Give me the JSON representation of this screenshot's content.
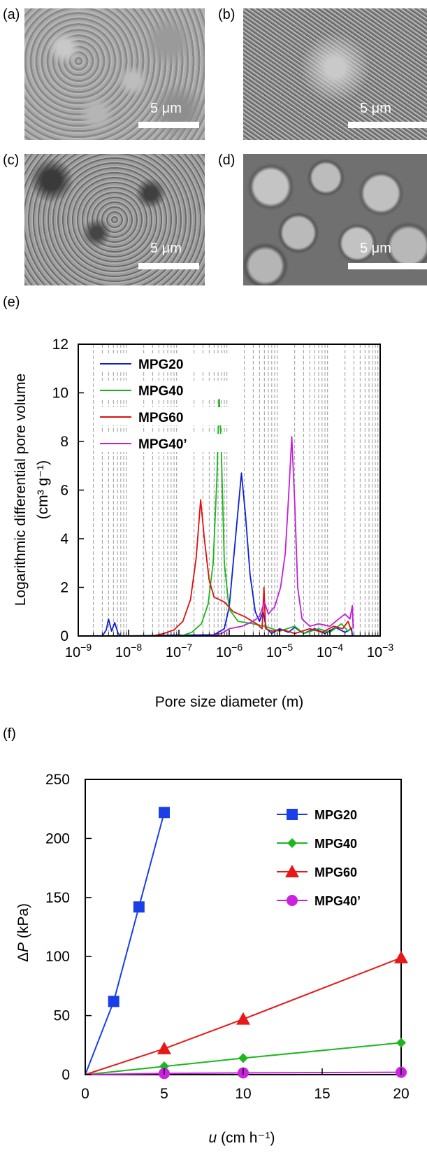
{
  "panels": {
    "a": {
      "label": "(a)",
      "scale": "5 μm"
    },
    "b": {
      "label": "(b)",
      "scale": "5 μm"
    },
    "c": {
      "label": "(c)",
      "scale": "5 μm"
    },
    "d": {
      "label": "(d)",
      "scale": "5 μm"
    },
    "e": {
      "label": "(e)"
    },
    "f": {
      "label": "(f)"
    }
  },
  "chart_data": [
    {
      "type": "line",
      "panel": "(e)",
      "title": "",
      "xlabel": "Pore size diameter (m)",
      "ylabel": "Logarithmic differential pore volume",
      "ylabel_unit": "(cm³ g⁻¹)",
      "x_scale": "log",
      "xlim": [
        1e-09,
        0.001
      ],
      "ylim": [
        0,
        12
      ],
      "yticks": [
        "0",
        "2",
        "4",
        "6",
        "8",
        "10",
        "12"
      ],
      "xticks": [
        {
          "base": "10",
          "exp": "−9"
        },
        {
          "base": "10",
          "exp": "−8"
        },
        {
          "base": "10",
          "exp": "−7"
        },
        {
          "base": "10",
          "exp": "−6"
        },
        {
          "base": "10",
          "exp": "−5"
        },
        {
          "base": "10",
          "exp": "−4"
        },
        {
          "base": "10",
          "exp": "−3"
        }
      ],
      "grid": "vertical dashed minor",
      "legend": "top-left",
      "series": [
        {
          "name": "MPG20",
          "color": "#0b1fd6",
          "points": [
            [
              3e-09,
              0
            ],
            [
              3.6e-09,
              0.25
            ],
            [
              4e-09,
              0.7
            ],
            [
              4.6e-09,
              0.2
            ],
            [
              5.3e-09,
              0.55
            ],
            [
              6.2e-09,
              0.1
            ],
            [
              7e-09,
              0
            ],
            [
              5e-07,
              0.05
            ],
            [
              8e-07,
              0.3
            ],
            [
              1e-06,
              1.2
            ],
            [
              1.2e-06,
              3.0
            ],
            [
              1.5e-06,
              5.2
            ],
            [
              1.75e-06,
              6.7
            ],
            [
              2.1e-06,
              5.0
            ],
            [
              2.6e-06,
              2.5
            ],
            [
              3.3e-06,
              1.0
            ],
            [
              4e-06,
              0.6
            ],
            [
              4.7e-06,
              1.0
            ],
            [
              5.5e-06,
              0.3
            ],
            [
              7e-06,
              0.1
            ],
            [
              1e-05,
              0.3
            ],
            [
              1.5e-05,
              0.15
            ],
            [
              2e-05,
              0.35
            ],
            [
              3e-05,
              0.1
            ],
            [
              5e-05,
              0.3
            ],
            [
              8e-05,
              0.1
            ],
            [
              0.00013,
              0.35
            ],
            [
              0.0002,
              0.15
            ],
            [
              0.00027,
              0.3
            ],
            [
              0.00028,
              0
            ]
          ]
        },
        {
          "name": "MPG40",
          "color": "#18b818",
          "points": [
            [
              3e-09,
              0
            ],
            [
              5e-08,
              0
            ],
            [
              1.1e-07,
              0
            ],
            [
              1.8e-07,
              0.15
            ],
            [
              2.8e-07,
              0.5
            ],
            [
              3.8e-07,
              1.3
            ],
            [
              4.8e-07,
              3.0
            ],
            [
              5.7e-07,
              6.5
            ],
            [
              6.3e-07,
              9.9
            ],
            [
              7e-07,
              7.5
            ],
            [
              8e-07,
              3.0
            ],
            [
              1e-06,
              1.1
            ],
            [
              1.5e-06,
              0.6
            ],
            [
              3e-06,
              0.5
            ],
            [
              5e-06,
              0.4
            ],
            [
              1e-05,
              0.2
            ],
            [
              2e-05,
              0.4
            ],
            [
              3e-05,
              0.1
            ],
            [
              6e-05,
              0.3
            ],
            [
              0.0001,
              0.15
            ],
            [
              0.00017,
              0.5
            ],
            [
              0.00023,
              0.2
            ],
            [
              0.00027,
              0.35
            ]
          ]
        },
        {
          "name": "MPG60",
          "color": "#e01010",
          "points": [
            [
              3e-08,
              0
            ],
            [
              5e-08,
              0.1
            ],
            [
              8e-08,
              0.25
            ],
            [
              1.2e-07,
              0.6
            ],
            [
              1.7e-07,
              1.5
            ],
            [
              2.2e-07,
              3.2
            ],
            [
              2.7e-07,
              5.6
            ],
            [
              3.2e-07,
              4.0
            ],
            [
              4e-07,
              2.3
            ],
            [
              5e-07,
              1.6
            ],
            [
              8e-07,
              1.4
            ],
            [
              1.2e-06,
              1.0
            ],
            [
              2e-06,
              0.8
            ],
            [
              3.5e-06,
              0.5
            ],
            [
              4.5e-06,
              0.3
            ],
            [
              4.9e-06,
              2.0
            ],
            [
              5.3e-06,
              0.3
            ],
            [
              7e-06,
              0.2
            ],
            [
              1.2e-05,
              0.25
            ],
            [
              2e-05,
              0.1
            ],
            [
              4e-05,
              0.3
            ],
            [
              7e-05,
              0.15
            ],
            [
              0.00012,
              0.4
            ],
            [
              0.00018,
              0.3
            ],
            [
              0.00023,
              0.6
            ],
            [
              0.00027,
              0.2
            ]
          ]
        },
        {
          "name": "MPG40’",
          "color": "#c21fd9",
          "points": [
            [
              4e-07,
              0
            ],
            [
              7e-07,
              0.1
            ],
            [
              1e-06,
              0.3
            ],
            [
              1.8e-06,
              0.4
            ],
            [
              3e-06,
              0.6
            ],
            [
              4e-06,
              0.8
            ],
            [
              5e-06,
              1.4
            ],
            [
              6e-06,
              0.9
            ],
            [
              8e-06,
              1.2
            ],
            [
              1.05e-05,
              2.0
            ],
            [
              1.3e-05,
              3.4
            ],
            [
              1.5e-05,
              5.6
            ],
            [
              1.75e-05,
              8.2
            ],
            [
              2e-05,
              5.5
            ],
            [
              2.3e-05,
              2.0
            ],
            [
              2.8e-05,
              0.7
            ],
            [
              4e-05,
              0.4
            ],
            [
              6e-05,
              0.5
            ],
            [
              0.0001,
              0.4
            ],
            [
              0.00015,
              0.7
            ],
            [
              0.0002,
              0.9
            ],
            [
              0.00025,
              0.7
            ],
            [
              0.00028,
              1.25
            ],
            [
              0.00029,
              0.3
            ]
          ]
        }
      ]
    },
    {
      "type": "line",
      "panel": "(f)",
      "title": "",
      "xlabel_italic": "u",
      "xlabel_rest": " (cm h⁻¹)",
      "ylabel_prefix": "Δ",
      "ylabel_italic": "P",
      "ylabel_rest": " (kPa)",
      "xlim": [
        0,
        20
      ],
      "ylim": [
        0,
        250
      ],
      "xticks": [
        "0",
        "5",
        "10",
        "15",
        "20"
      ],
      "yticks": [
        "0",
        "50",
        "100",
        "150",
        "200",
        "250"
      ],
      "grid": false,
      "legend": "top-right",
      "series": [
        {
          "name": "MPG20",
          "color": "#1a3fe8",
          "marker": "square",
          "x": [
            0,
            1.8,
            3.4,
            5.0
          ],
          "y": [
            0,
            62,
            142,
            222
          ]
        },
        {
          "name": "MPG40",
          "color": "#1db71d",
          "marker": "diamond",
          "x": [
            0,
            5,
            10,
            20
          ],
          "y": [
            0,
            7,
            14,
            27
          ]
        },
        {
          "name": "MPG60",
          "color": "#e81818",
          "marker": "triangle",
          "x": [
            0,
            5,
            10,
            20
          ],
          "y": [
            0,
            22,
            47,
            99
          ]
        },
        {
          "name": "MPG40’",
          "color": "#cc22e0",
          "marker": "circle",
          "x": [
            0,
            5,
            10,
            20
          ],
          "y": [
            0,
            1,
            1.5,
            2
          ]
        }
      ]
    }
  ]
}
